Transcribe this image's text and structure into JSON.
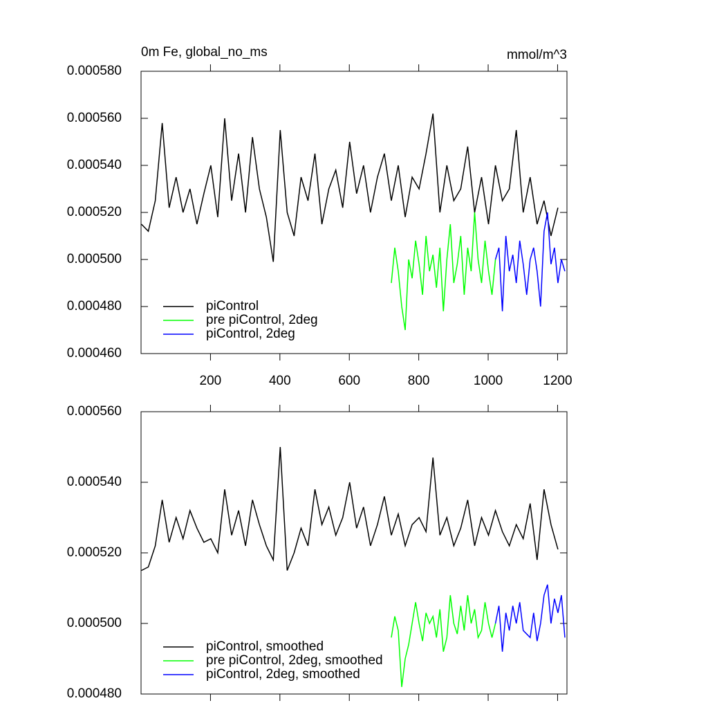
{
  "chart_data": [
    {
      "type": "line",
      "title": "0m Fe, global_no_ms",
      "units": "mmol/m^3",
      "xlim": [
        0,
        1227
      ],
      "xticks": [
        200,
        400,
        600,
        800,
        1000,
        1200
      ],
      "xtick_labels": true,
      "ylim": [
        0.00046,
        0.00058
      ],
      "yticks": [
        {
          "value": 0.00046,
          "label": "0.000460"
        },
        {
          "value": 0.00048,
          "label": "0.000480"
        },
        {
          "value": 0.0005,
          "label": "0.000500"
        },
        {
          "value": 0.00052,
          "label": "0.000520"
        },
        {
          "value": 0.00054,
          "label": "0.000540"
        },
        {
          "value": 0.00056,
          "label": "0.000560"
        },
        {
          "value": 0.00058,
          "label": "0.000580"
        }
      ],
      "legend": "lower left",
      "series": [
        {
          "name": "piControl",
          "color": "#000000",
          "x": [
            1,
            21,
            41,
            61,
            81,
            101,
            121,
            141,
            161,
            181,
            201,
            221,
            241,
            261,
            281,
            301,
            321,
            341,
            361,
            381,
            401,
            421,
            441,
            461,
            481,
            501,
            521,
            541,
            561,
            581,
            601,
            621,
            641,
            661,
            681,
            701,
            721,
            741,
            761,
            781,
            801,
            821,
            841,
            861,
            881,
            901,
            921,
            941,
            961,
            981,
            1001,
            1021,
            1041,
            1061,
            1081,
            1101,
            1121,
            1141,
            1161,
            1181,
            1201
          ],
          "values": [
            0.000515,
            0.000512,
            0.000525,
            0.000558,
            0.000522,
            0.000535,
            0.00052,
            0.00053,
            0.000515,
            0.000528,
            0.00054,
            0.000518,
            0.00056,
            0.000525,
            0.000545,
            0.00052,
            0.000552,
            0.00053,
            0.000518,
            0.000499,
            0.000555,
            0.00052,
            0.00051,
            0.000535,
            0.000525,
            0.000545,
            0.000515,
            0.00053,
            0.000538,
            0.000522,
            0.00055,
            0.000528,
            0.00054,
            0.00052,
            0.000535,
            0.000545,
            0.000525,
            0.00054,
            0.000518,
            0.000535,
            0.00053,
            0.000545,
            0.000562,
            0.00052,
            0.00054,
            0.000525,
            0.00053,
            0.000548,
            0.00052,
            0.000535,
            0.000515,
            0.00054,
            0.000525,
            0.00053,
            0.000555,
            0.00052,
            0.000535,
            0.000515,
            0.000525,
            0.00051,
            0.000522
          ]
        },
        {
          "name": "pre piControl, 2deg",
          "color": "#00ff00",
          "x": [
            721,
            731,
            741,
            751,
            761,
            771,
            781,
            791,
            801,
            811,
            821,
            831,
            841,
            851,
            861,
            871,
            881,
            891,
            901,
            911,
            921,
            931,
            941,
            951,
            961,
            971,
            981,
            991,
            1001,
            1011,
            1021
          ],
          "values": [
            0.00049,
            0.000505,
            0.000495,
            0.00048,
            0.00047,
            0.0005,
            0.000492,
            0.000508,
            0.000498,
            0.000485,
            0.00051,
            0.000495,
            0.000502,
            0.000488,
            0.000505,
            0.000478,
            0.0005,
            0.000515,
            0.00049,
            0.000498,
            0.00051,
            0.000485,
            0.000505,
            0.000495,
            0.00052,
            0.0005,
            0.00049,
            0.000508,
            0.000495,
            0.000485,
            0.0005
          ]
        },
        {
          "name": "piControl, 2deg",
          "color": "#0000ff",
          "x": [
            1021,
            1031,
            1041,
            1051,
            1061,
            1071,
            1081,
            1091,
            1101,
            1111,
            1121,
            1131,
            1141,
            1151,
            1161,
            1171,
            1181,
            1191,
            1201,
            1211,
            1221
          ],
          "values": [
            0.0005,
            0.000505,
            0.000478,
            0.00051,
            0.000495,
            0.000502,
            0.00049,
            0.000508,
            0.000498,
            0.000485,
            0.0005,
            0.000505,
            0.000495,
            0.00048,
            0.000512,
            0.00052,
            0.000498,
            0.000505,
            0.00049,
            0.0005,
            0.000495
          ]
        }
      ]
    },
    {
      "type": "line",
      "xlim": [
        0,
        1227
      ],
      "xticks": [
        200,
        400,
        600,
        800,
        1000,
        1200
      ],
      "xtick_labels": false,
      "ylim": [
        0.00048,
        0.00056
      ],
      "yticks": [
        {
          "value": 0.00048,
          "label": "0.000480"
        },
        {
          "value": 0.0005,
          "label": "0.000500"
        },
        {
          "value": 0.00052,
          "label": "0.000520"
        },
        {
          "value": 0.00054,
          "label": "0.000540"
        },
        {
          "value": 0.00056,
          "label": "0.000560"
        }
      ],
      "legend": "lower left",
      "series": [
        {
          "name": "piControl, smoothed",
          "color": "#000000",
          "x": [
            1,
            21,
            41,
            61,
            81,
            101,
            121,
            141,
            161,
            181,
            201,
            221,
            241,
            261,
            281,
            301,
            321,
            341,
            361,
            381,
            401,
            421,
            441,
            461,
            481,
            501,
            521,
            541,
            561,
            581,
            601,
            621,
            641,
            661,
            681,
            701,
            721,
            741,
            761,
            781,
            801,
            821,
            841,
            861,
            881,
            901,
            921,
            941,
            961,
            981,
            1001,
            1021,
            1041,
            1061,
            1081,
            1101,
            1121,
            1141,
            1161,
            1181,
            1201
          ],
          "values": [
            0.000515,
            0.000516,
            0.000522,
            0.000535,
            0.000523,
            0.00053,
            0.000524,
            0.000532,
            0.000527,
            0.000523,
            0.000524,
            0.00052,
            0.000538,
            0.000525,
            0.000532,
            0.000522,
            0.000535,
            0.000528,
            0.000522,
            0.000518,
            0.00055,
            0.000515,
            0.00052,
            0.000527,
            0.000522,
            0.000538,
            0.000528,
            0.000533,
            0.000525,
            0.00053,
            0.00054,
            0.000527,
            0.000533,
            0.000522,
            0.000528,
            0.000536,
            0.000525,
            0.000531,
            0.000522,
            0.000528,
            0.00053,
            0.000526,
            0.000547,
            0.000525,
            0.00053,
            0.000522,
            0.000527,
            0.000535,
            0.000522,
            0.00053,
            0.000525,
            0.000532,
            0.000526,
            0.000522,
            0.000528,
            0.000524,
            0.000534,
            0.000518,
            0.000538,
            0.000528,
            0.000521
          ]
        },
        {
          "name": "pre piControl, 2deg, smoothed",
          "color": "#00ff00",
          "x": [
            721,
            731,
            741,
            751,
            761,
            771,
            781,
            791,
            801,
            811,
            821,
            831,
            841,
            851,
            861,
            871,
            881,
            891,
            901,
            911,
            921,
            931,
            941,
            951,
            961,
            971,
            981,
            991,
            1001,
            1011,
            1021
          ],
          "values": [
            0.000496,
            0.000502,
            0.000498,
            0.000482,
            0.00049,
            0.000494,
            0.0005,
            0.000506,
            0.0005,
            0.000495,
            0.000503,
            0.0005,
            0.000502,
            0.000496,
            0.000504,
            0.000492,
            0.000496,
            0.000508,
            0.0005,
            0.000497,
            0.000505,
            0.000498,
            0.000508,
            0.0005,
            0.000504,
            0.000496,
            0.000498,
            0.000506,
            0.0005,
            0.000496,
            0.0005
          ]
        },
        {
          "name": "piControl, 2deg, smoothed",
          "color": "#0000ff",
          "x": [
            1021,
            1031,
            1041,
            1051,
            1061,
            1071,
            1081,
            1091,
            1101,
            1111,
            1121,
            1131,
            1141,
            1151,
            1161,
            1171,
            1181,
            1191,
            1201,
            1211,
            1221
          ],
          "values": [
            0.0005,
            0.000505,
            0.000492,
            0.000503,
            0.000498,
            0.000505,
            0.0005,
            0.000506,
            0.000498,
            0.000497,
            0.000496,
            0.000503,
            0.000495,
            0.0005,
            0.000508,
            0.000511,
            0.0005,
            0.000507,
            0.000503,
            0.000508,
            0.000496
          ]
        }
      ]
    }
  ]
}
